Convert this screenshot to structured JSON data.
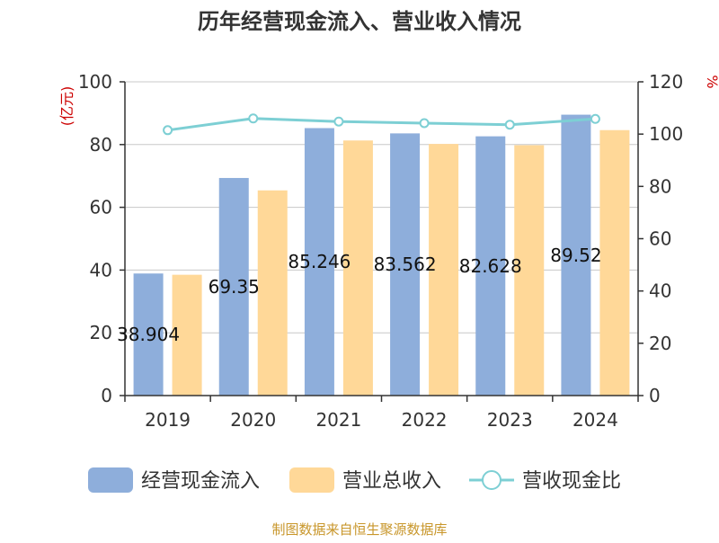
{
  "chart_data": {
    "type": "bar",
    "title": "历年经营现金流入、营业收入情况",
    "categories": [
      "2019",
      "2020",
      "2021",
      "2022",
      "2023",
      "2024"
    ],
    "series": [
      {
        "name": "经营现金流入",
        "kind": "bar",
        "axis": "left",
        "color": "#8eaedb",
        "values": [
          38.904,
          69.35,
          85.246,
          83.562,
          82.628,
          89.52
        ],
        "labels": [
          "38.904",
          "69.35",
          "85.246",
          "83.562",
          "82.628",
          "89.52"
        ]
      },
      {
        "name": "营业总收入",
        "kind": "bar",
        "axis": "left",
        "color": "#ffd898",
        "values": [
          38.5,
          65.4,
          81.3,
          80.2,
          79.8,
          84.6
        ]
      },
      {
        "name": "营收现金比",
        "kind": "line",
        "axis": "right",
        "color": "#7dcfd4",
        "values": [
          101.5,
          106.0,
          104.8,
          104.2,
          103.6,
          105.8
        ]
      }
    ],
    "y_left": {
      "unit": "(亿元)",
      "min": 0,
      "max": 100,
      "ticks": [
        0,
        20,
        40,
        60,
        80,
        100
      ]
    },
    "y_right": {
      "unit": "%",
      "min": 0,
      "max": 120,
      "ticks": [
        0,
        20,
        40,
        60,
        80,
        100,
        120
      ]
    },
    "grid": true,
    "legend_position": "bottom"
  },
  "source": "制图数据来自恒生聚源数据库"
}
